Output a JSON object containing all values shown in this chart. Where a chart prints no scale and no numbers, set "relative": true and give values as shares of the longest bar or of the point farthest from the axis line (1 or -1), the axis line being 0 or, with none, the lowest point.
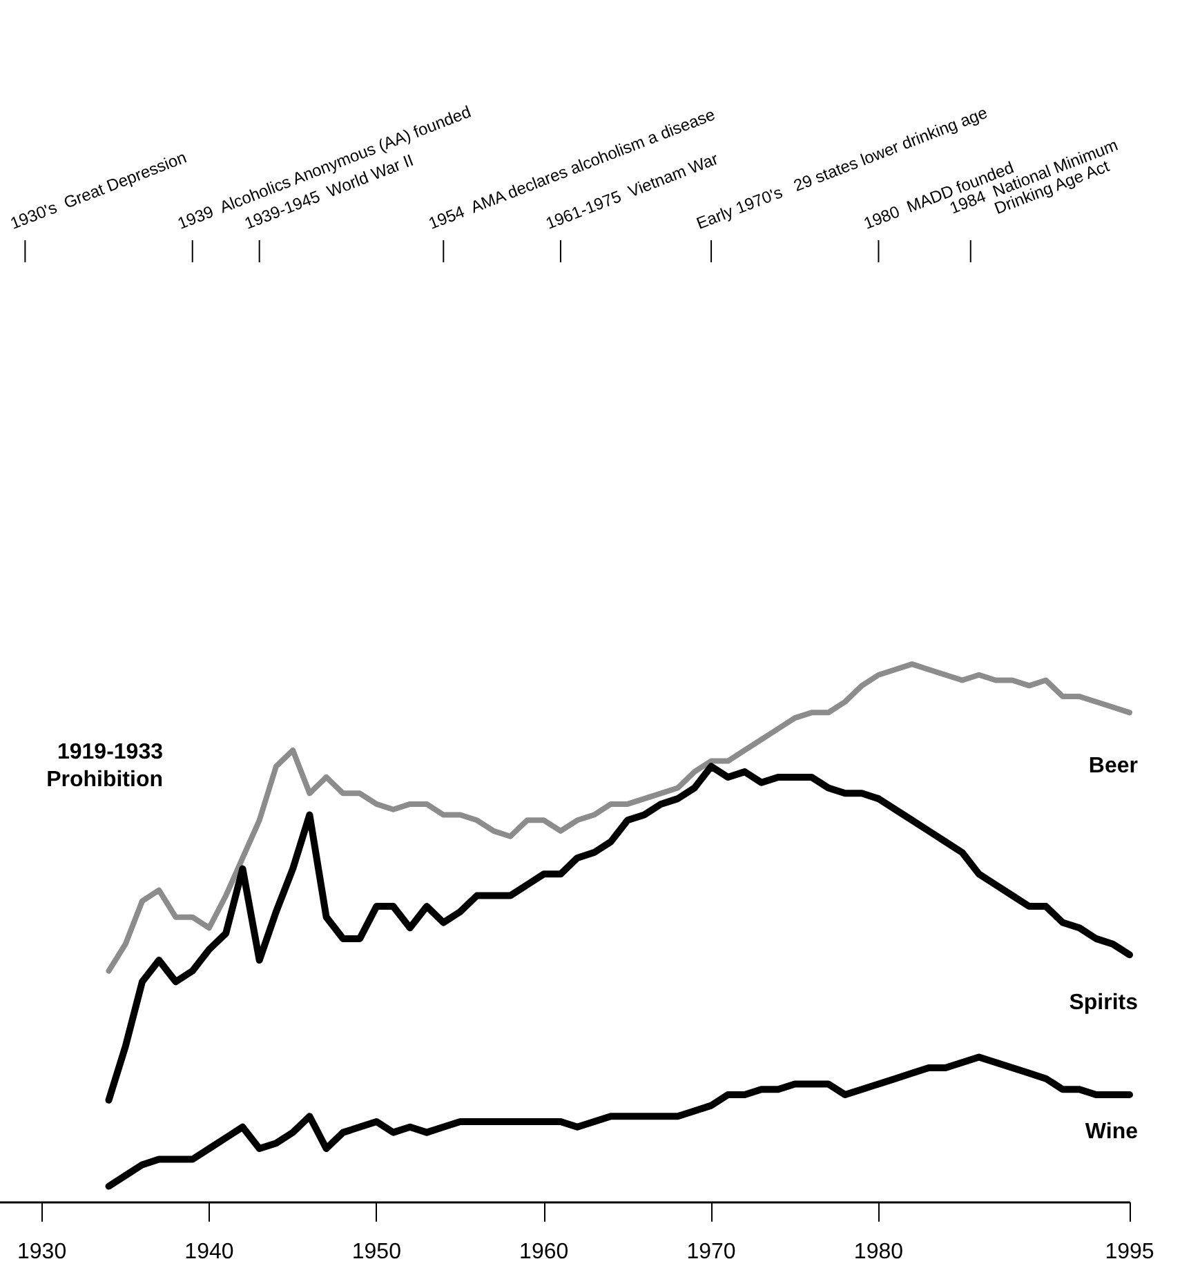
{
  "chart_data": {
    "type": "line",
    "relative": true,
    "marker": "none",
    "x": [
      1934,
      1935,
      1936,
      1937,
      1938,
      1939,
      1940,
      1941,
      1942,
      1943,
      1944,
      1945,
      1946,
      1947,
      1948,
      1949,
      1950,
      1951,
      1952,
      1953,
      1954,
      1955,
      1956,
      1957,
      1958,
      1959,
      1960,
      1961,
      1962,
      1963,
      1964,
      1965,
      1966,
      1967,
      1968,
      1969,
      1970,
      1971,
      1972,
      1973,
      1974,
      1975,
      1976,
      1977,
      1978,
      1979,
      1980,
      1981,
      1982,
      1983,
      1984,
      1985,
      1986,
      1987,
      1988,
      1989,
      1990,
      1991,
      1992,
      1993,
      1994,
      1995
    ],
    "xlim": [
      1927.5,
      1995
    ],
    "xticks": [
      1930,
      1940,
      1950,
      1960,
      1970,
      1980,
      1995
    ],
    "series": [
      {
        "name": "Beer",
        "color": "#8c8c8c",
        "values": [
          0.43,
          0.48,
          0.56,
          0.58,
          0.53,
          0.53,
          0.51,
          0.57,
          0.64,
          0.71,
          0.81,
          0.84,
          0.76,
          0.79,
          0.76,
          0.76,
          0.74,
          0.73,
          0.74,
          0.74,
          0.72,
          0.72,
          0.71,
          0.69,
          0.68,
          0.71,
          0.71,
          0.69,
          0.71,
          0.72,
          0.74,
          0.74,
          0.75,
          0.76,
          0.77,
          0.8,
          0.82,
          0.82,
          0.84,
          0.86,
          0.88,
          0.9,
          0.91,
          0.91,
          0.93,
          0.96,
          0.98,
          0.99,
          1.0,
          0.99,
          0.98,
          0.97,
          0.98,
          0.97,
          0.97,
          0.96,
          0.97,
          0.94,
          0.94,
          0.93,
          0.92,
          0.91
        ]
      },
      {
        "name": "Spirits",
        "color": "#000000",
        "values": [
          0.19,
          0.29,
          0.41,
          0.45,
          0.41,
          0.43,
          0.47,
          0.5,
          0.62,
          0.45,
          0.54,
          0.62,
          0.72,
          0.53,
          0.49,
          0.49,
          0.55,
          0.55,
          0.51,
          0.55,
          0.52,
          0.54,
          0.57,
          0.57,
          0.57,
          0.59,
          0.61,
          0.61,
          0.64,
          0.65,
          0.67,
          0.71,
          0.72,
          0.74,
          0.75,
          0.77,
          0.81,
          0.79,
          0.8,
          0.78,
          0.79,
          0.79,
          0.79,
          0.77,
          0.76,
          0.76,
          0.75,
          0.73,
          0.71,
          0.69,
          0.67,
          0.65,
          0.61,
          0.59,
          0.57,
          0.55,
          0.55,
          0.52,
          0.51,
          0.49,
          0.48,
          0.46
        ]
      },
      {
        "name": "Wine",
        "color": "#000000",
        "values": [
          0.03,
          0.05,
          0.07,
          0.08,
          0.08,
          0.08,
          0.1,
          0.12,
          0.14,
          0.1,
          0.11,
          0.13,
          0.16,
          0.1,
          0.13,
          0.14,
          0.15,
          0.13,
          0.14,
          0.13,
          0.14,
          0.15,
          0.15,
          0.15,
          0.15,
          0.15,
          0.15,
          0.15,
          0.14,
          0.15,
          0.16,
          0.16,
          0.16,
          0.16,
          0.16,
          0.17,
          0.18,
          0.2,
          0.2,
          0.21,
          0.21,
          0.22,
          0.22,
          0.22,
          0.2,
          0.21,
          0.22,
          0.23,
          0.24,
          0.25,
          0.25,
          0.26,
          0.27,
          0.26,
          0.25,
          0.24,
          0.23,
          0.21,
          0.21,
          0.2,
          0.2,
          0.2
        ]
      }
    ],
    "annotations": [
      "1919-1933\nProhibition"
    ],
    "ref_lines": [
      {
        "axis": "x",
        "value": 1929,
        "label": "1930's  Great Depression"
      },
      {
        "axis": "x",
        "value": 1939,
        "label": "1939  Alcoholics Anonymous (AA) founded"
      },
      {
        "axis": "x",
        "value": 1943,
        "label": "1939-1945  World War II"
      },
      {
        "axis": "x",
        "value": 1954,
        "label": "1954  AMA declares alcoholism a disease"
      },
      {
        "axis": "x",
        "value": 1961,
        "label": "1961-1975  Vietnam War"
      },
      {
        "axis": "x",
        "value": 1970,
        "label": "Early 1970's   29 states lower drinking age"
      },
      {
        "axis": "x",
        "value": 1980,
        "label": "1980  MADD founded"
      },
      {
        "axis": "x",
        "value": 1985.5,
        "label": "1984  National Minimum\n         Drinking Age Act"
      }
    ]
  }
}
